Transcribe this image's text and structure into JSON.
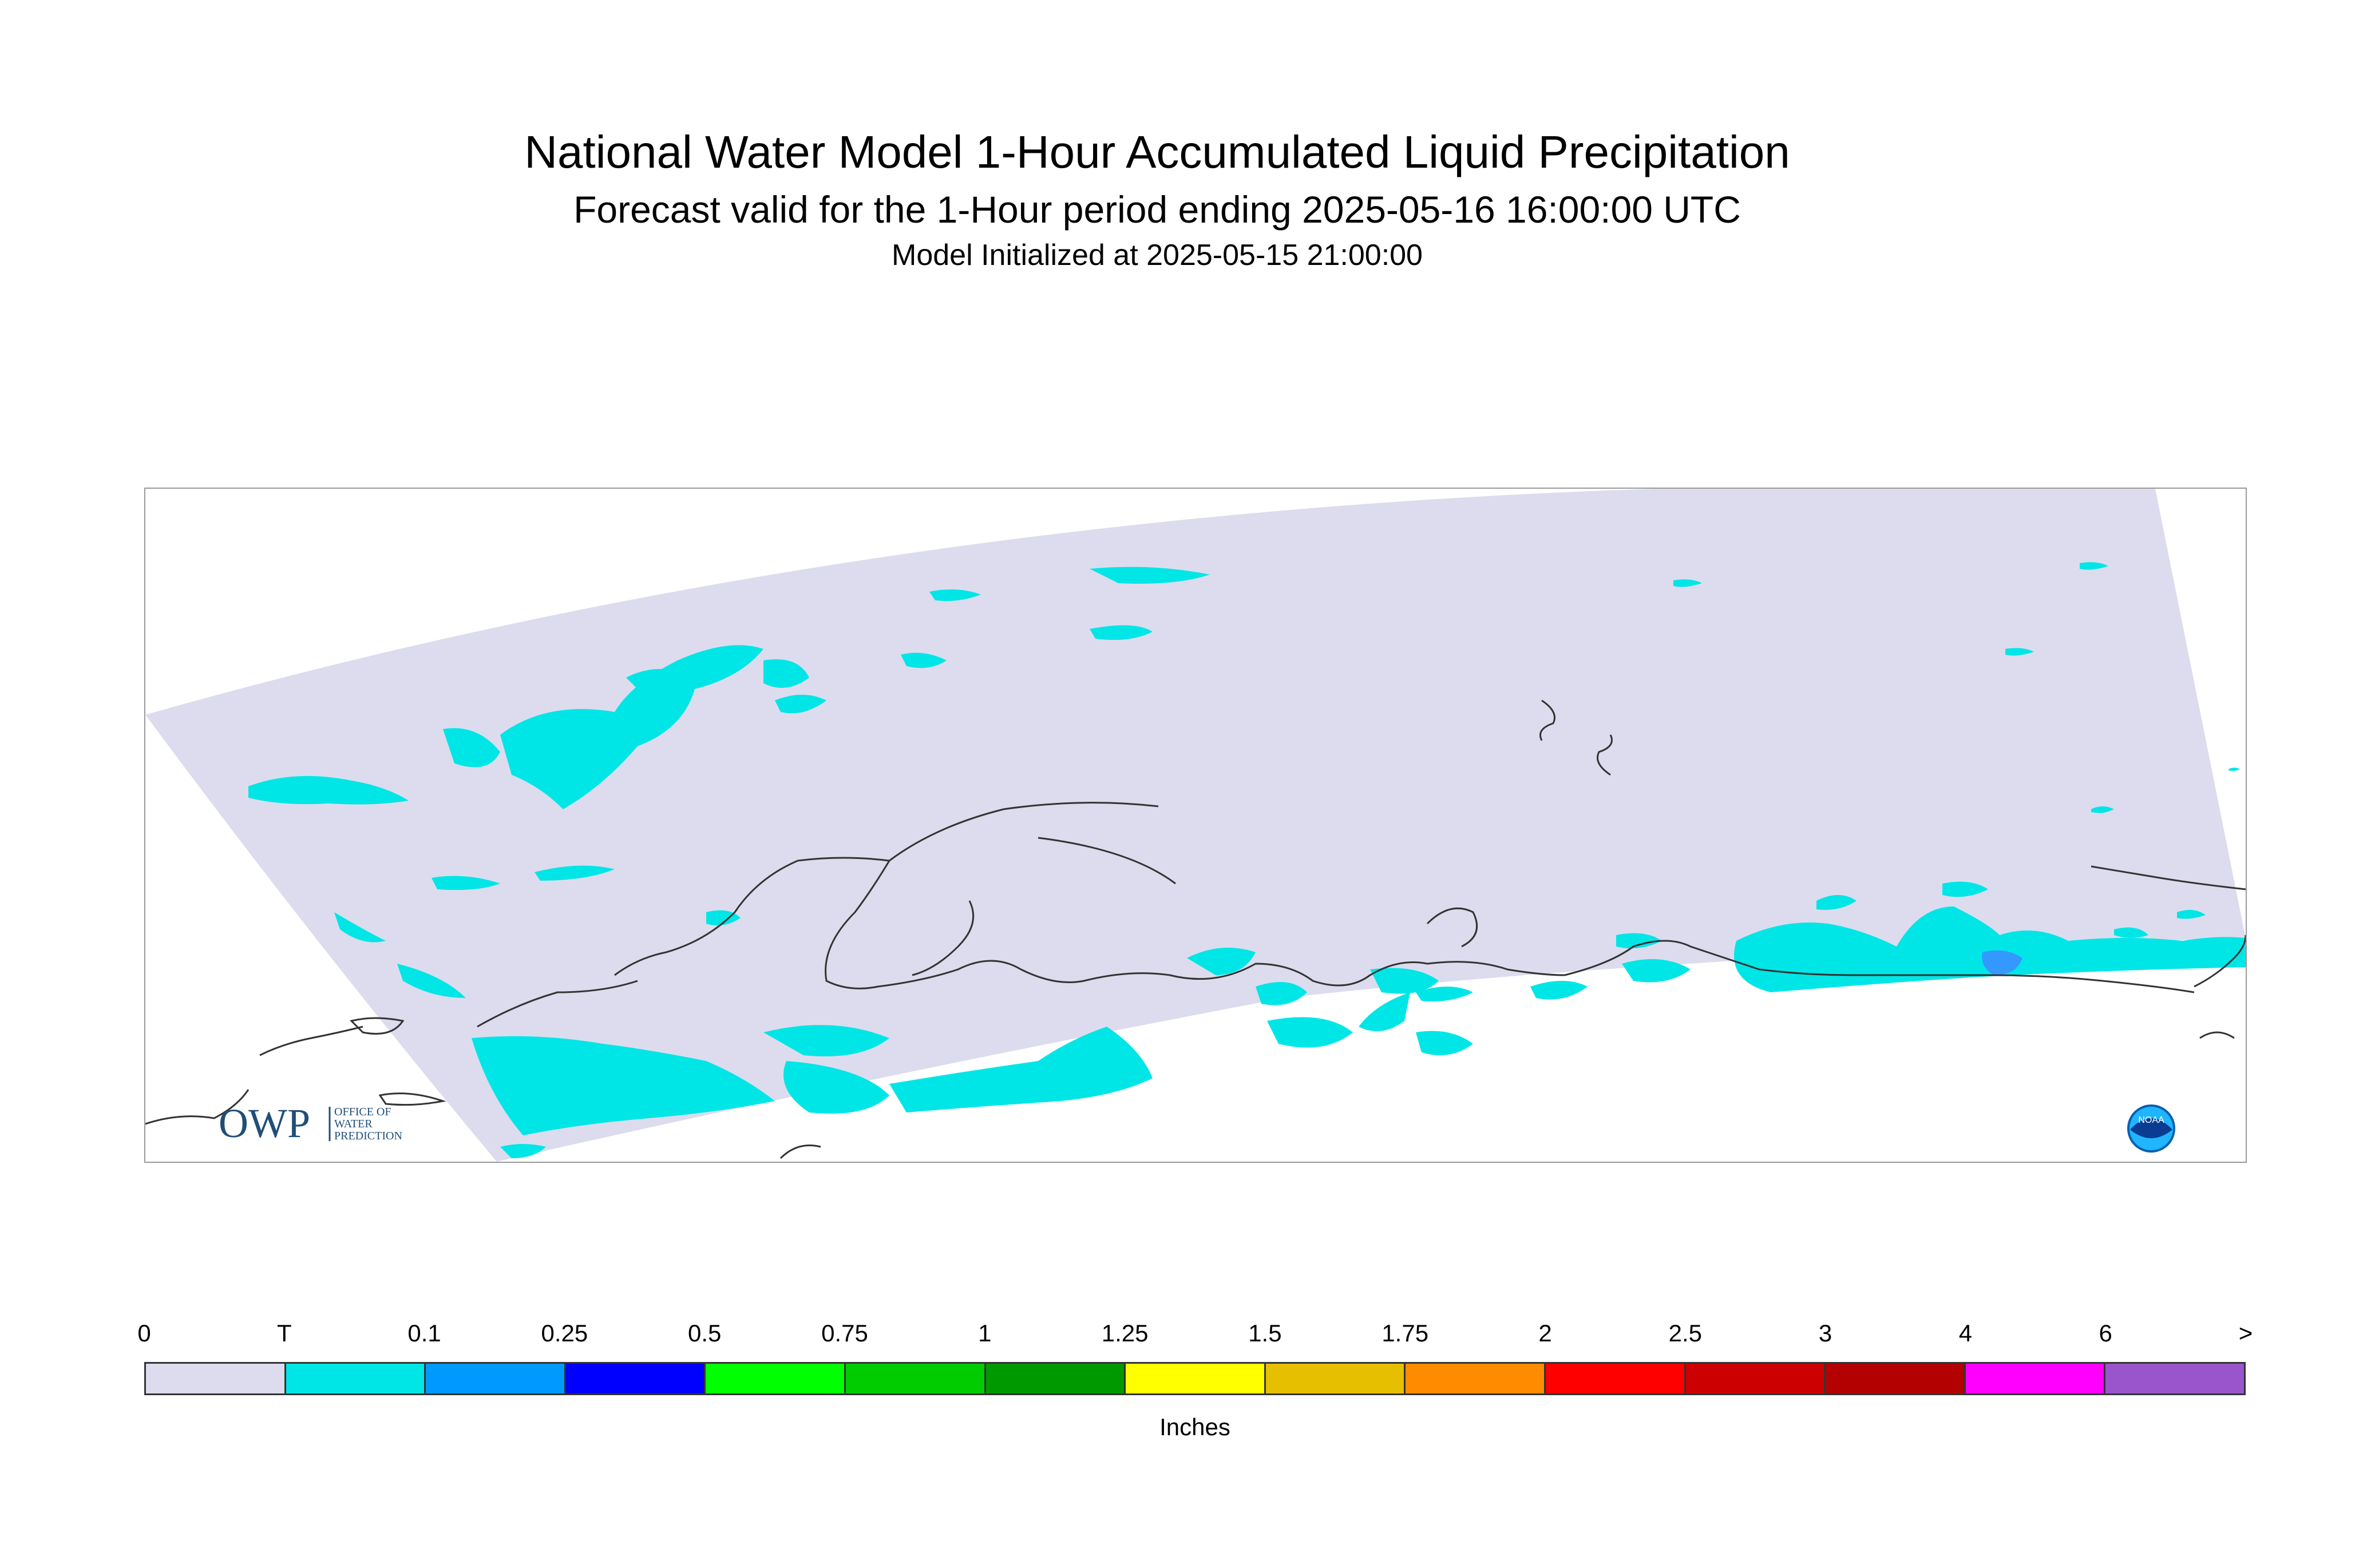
{
  "title": "National Water Model 1-Hour Accumulated Liquid Precipitation",
  "subtitle": "Forecast valid for the 1-Hour period ending 2025-05-16 16:00:00 UTC",
  "init_line": "Model Initialized at 2025-05-15 21:00:00",
  "logos": {
    "owp_mark": "OWP",
    "owp_text": [
      "OFFICE OF",
      "WATER",
      "PREDICTION"
    ],
    "noaa_text": "NOAA"
  },
  "colors": {
    "domain_fill": "#dcdcee",
    "trace_fill": "#00e6e6",
    "light_fill": "#0099ff",
    "coastline": "#333333"
  },
  "legend": {
    "tick_labels": [
      "0",
      "T",
      "0.1",
      "0.25",
      "0.5",
      "0.75",
      "1",
      "1.25",
      "1.5",
      "1.75",
      "2",
      "2.5",
      "3",
      "4",
      "6",
      ">"
    ],
    "colors": [
      "#dcdcee",
      "#00e6e6",
      "#0099ff",
      "#0000ff",
      "#00ff00",
      "#00cc00",
      "#009900",
      "#ffff00",
      "#e6c000",
      "#ff8c00",
      "#ff0000",
      "#cc0000",
      "#b30000",
      "#ff00ff",
      "#9955cc"
    ],
    "units": "Inches"
  }
}
